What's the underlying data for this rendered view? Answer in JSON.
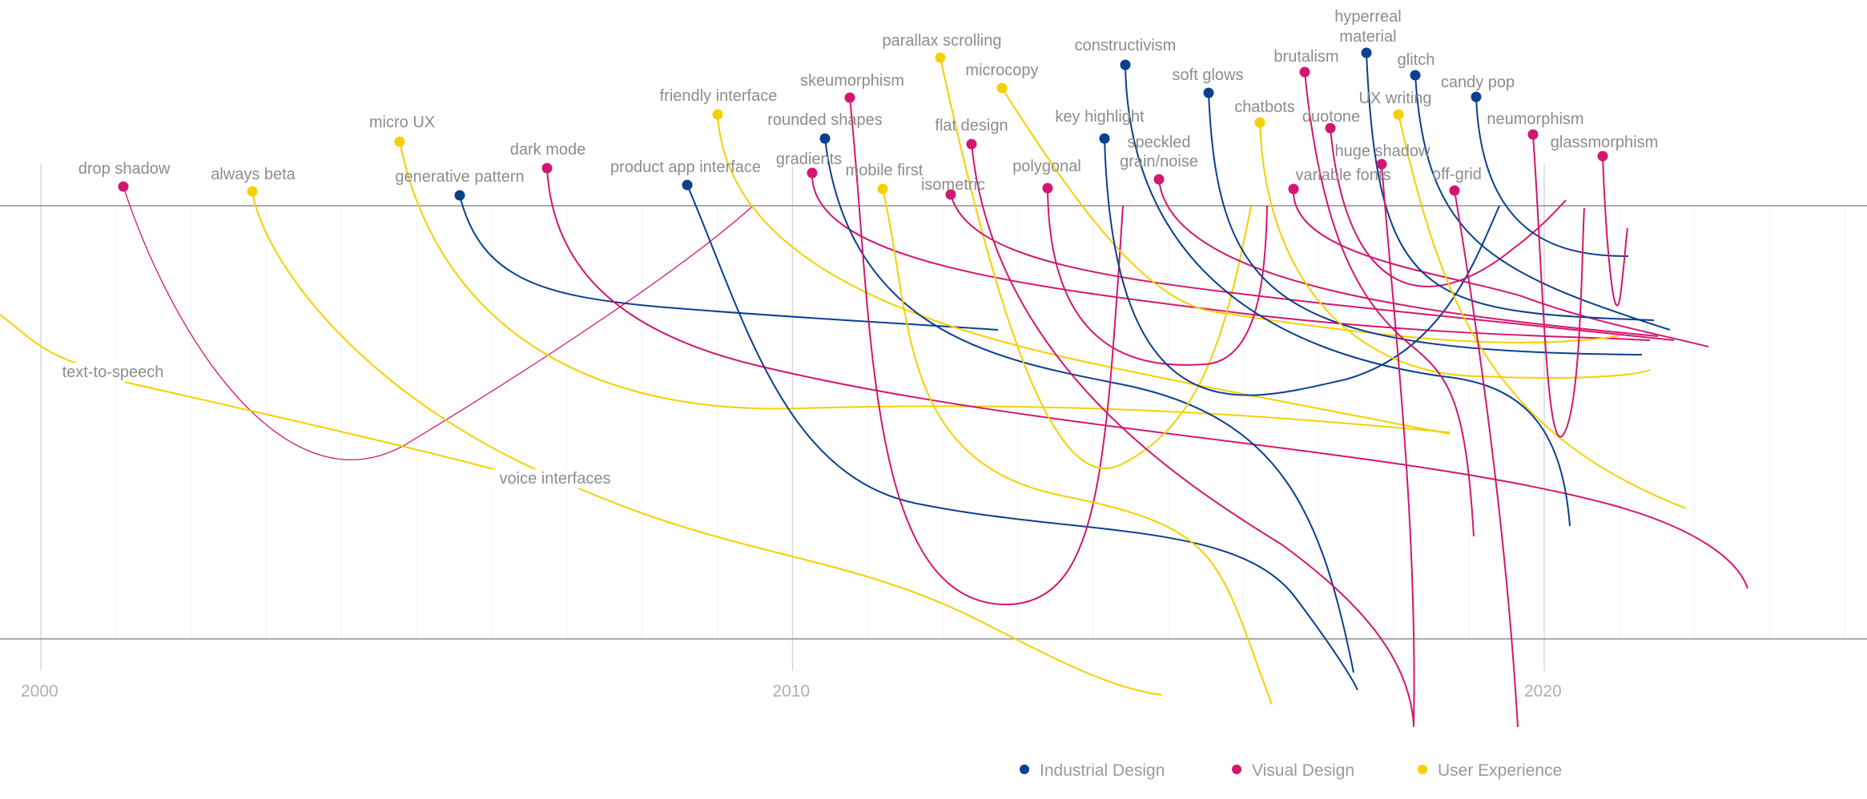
{
  "chart_data": {
    "type": "line",
    "title": "",
    "x_axis": {
      "min": 1999.5,
      "max": 2024.3,
      "ticks": [
        2000,
        2010,
        2020
      ],
      "tick_labels": [
        "2000",
        "2010",
        "2020"
      ]
    },
    "categories": [
      {
        "name": "Industrial Design",
        "color": "#0b3f8f"
      },
      {
        "name": "Visual Design",
        "color": "#d3166f"
      },
      {
        "name": "User Experience",
        "color": "#f5d000"
      }
    ],
    "series": [
      {
        "name": "drop shadow",
        "category": "Visual Design",
        "start": 2001.1,
        "end": 2009.5
      },
      {
        "name": "always beta",
        "category": "User Experience",
        "start": 2002.8,
        "end": 2016.1
      },
      {
        "name": "micro UX",
        "category": "User Experience",
        "start": 2004.8,
        "end": 2019.9
      },
      {
        "name": "generative pattern",
        "category": "Industrial Design",
        "start": 2005.6,
        "end": 2012.8
      },
      {
        "name": "dark mode",
        "category": "Visual Design",
        "start": 2006.8,
        "end": 2022.8
      },
      {
        "name": "product app interface",
        "category": "Industrial Design",
        "start": 2008.7,
        "end": 2017.6
      },
      {
        "name": "friendly interface",
        "category": "User Experience",
        "start": 2009.1,
        "end": 2018.8
      },
      {
        "name": "gradients",
        "category": "Visual Design",
        "start": 2010.3,
        "end": 2021.7
      },
      {
        "name": "rounded shapes",
        "category": "Industrial Design",
        "start": 2010.6,
        "end": 2021.6
      },
      {
        "name": "skeumorphism",
        "category": "Visual Design",
        "start": 2010.8,
        "end": 2014.5
      },
      {
        "name": "mobile first",
        "category": "User Experience",
        "start": 2011.6,
        "end": 2015.7
      },
      {
        "name": "parallax scrolling",
        "category": "User Experience",
        "start": 2012.0,
        "end": 2016.1
      },
      {
        "name": "isometric",
        "category": "Visual Design",
        "start": 2012.1,
        "end": 2021.7
      },
      {
        "name": "flat design",
        "category": "Visual Design",
        "start": 2012.3,
        "end": 2018.3
      },
      {
        "name": "microcopy",
        "category": "User Experience",
        "start": 2012.8,
        "end": 2021.3
      },
      {
        "name": "polygonal",
        "category": "Visual Design",
        "start": 2013.5,
        "end": 2016.4
      },
      {
        "name": "key highlight",
        "category": "Industrial Design",
        "start": 2014.2,
        "end": 2019.4
      },
      {
        "name": "constructivism",
        "category": "Industrial Design",
        "start": 2014.8,
        "end": 2017.8
      },
      {
        "name": "speckled grain/noise",
        "category": "Visual Design",
        "start": 2015.0,
        "end": 2021.3
      },
      {
        "name": "soft glows",
        "category": "Industrial Design",
        "start": 2015.6,
        "end": 2021.1
      },
      {
        "name": "chatbots",
        "category": "User Experience",
        "start": 2016.2,
        "end": 2021.2
      },
      {
        "name": "brutalism",
        "category": "Visual Design",
        "start": 2016.8,
        "end": 2019.4
      },
      {
        "name": "variable fonts",
        "category": "Visual Design",
        "start": 2016.7,
        "end": 2021.8
      },
      {
        "name": "duotone",
        "category": "Visual Design",
        "start": 2017.3,
        "end": 2021.1
      },
      {
        "name": "hyperreal material",
        "category": "Industrial Design",
        "start": 2017.3,
        "end": 2021.0
      },
      {
        "name": "UX writing",
        "category": "User Experience",
        "start": 2017.7,
        "end": 2021.9
      },
      {
        "name": "huge shadow",
        "category": "Visual Design",
        "start": 2017.7,
        "end": 2019.4
      },
      {
        "name": "glitch",
        "category": "Industrial Design",
        "start": 2017.9,
        "end": 2021.6
      },
      {
        "name": "off-grid",
        "category": "Visual Design",
        "start": 2018.6,
        "end": 2020.9
      },
      {
        "name": "candy pop",
        "category": "Industrial Design",
        "start": 2018.6,
        "end": 2021.2
      },
      {
        "name": "neumorphism",
        "category": "Visual Design",
        "start": 2019.6,
        "end": 2020.5
      },
      {
        "name": "glassmorphism",
        "category": "Visual Design",
        "start": 2020.8,
        "end": 2021.1
      },
      {
        "name": "text-to-speech",
        "category": "User Experience",
        "start": 1999.5,
        "end": 2001.1
      },
      {
        "name": "voice interfaces",
        "category": "User Experience",
        "start": 2001.1,
        "end": 2007.7
      }
    ]
  }
}
